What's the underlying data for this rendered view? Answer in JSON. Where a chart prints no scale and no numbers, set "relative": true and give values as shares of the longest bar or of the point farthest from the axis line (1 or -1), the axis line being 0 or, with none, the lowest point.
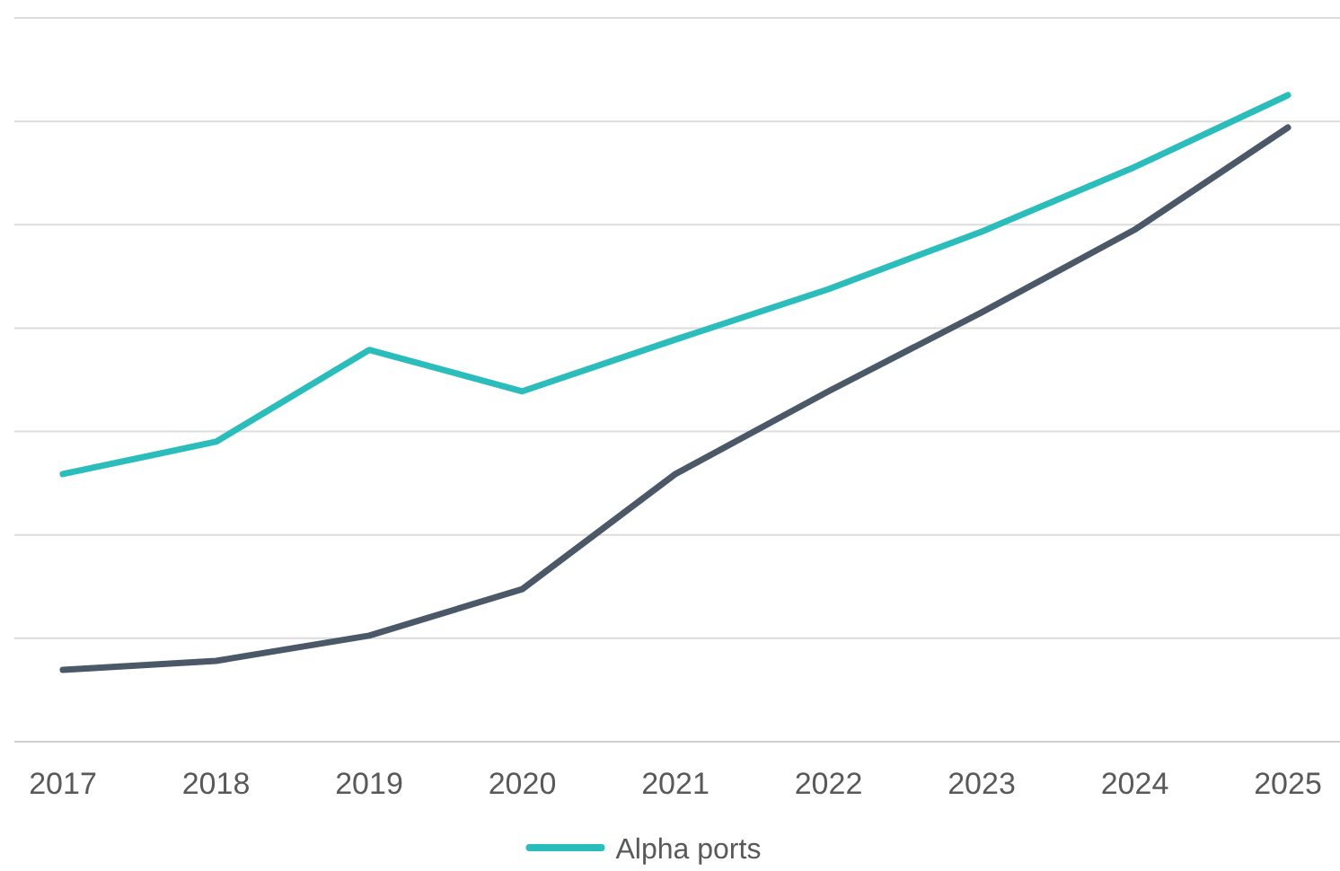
{
  "chart_data": {
    "type": "line",
    "relative": true,
    "grid": "y",
    "legend": "bottom",
    "categories": [
      "2017",
      "2018",
      "2019",
      "2020",
      "2021",
      "2022",
      "2023",
      "2024",
      "2025"
    ],
    "series": [
      {
        "color": "#4a5868",
        "values": [
          0.111,
          0.125,
          0.164,
          0.236,
          0.414,
          0.542,
          0.664,
          0.792,
          0.95
        ]
      },
      {
        "name": "Alpha ports",
        "color": "#2bbcbc",
        "values": [
          0.414,
          0.464,
          0.606,
          0.542,
          0.622,
          0.7,
          0.789,
          0.889,
          1
        ]
      }
    ]
  }
}
